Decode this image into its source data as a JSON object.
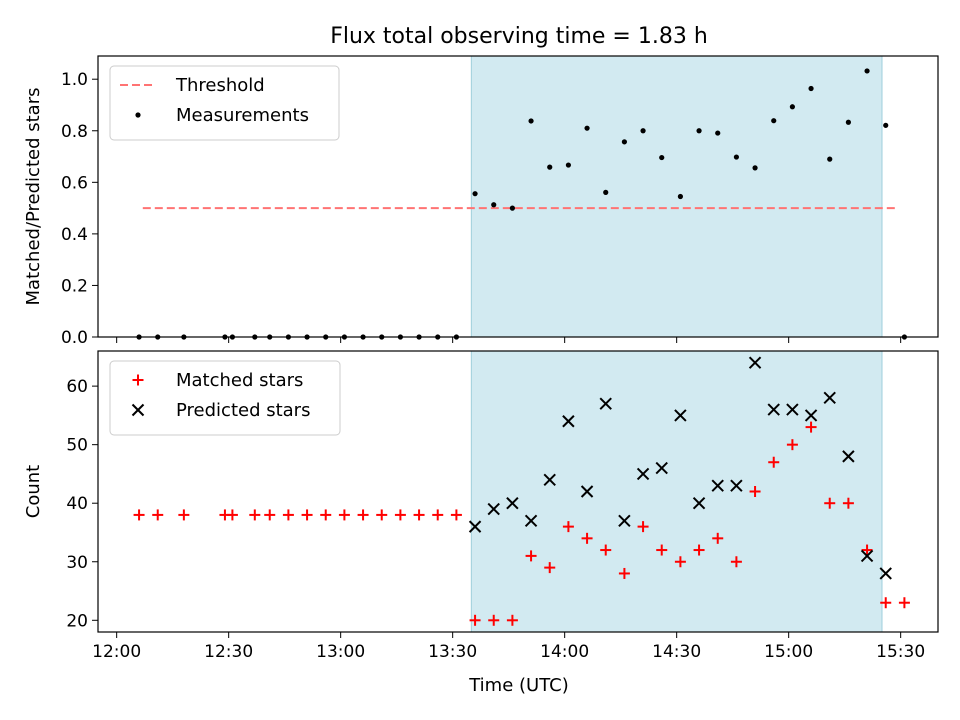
{
  "chart_data": {
    "title": "Flux total observing time = 1.83 h",
    "xlabel": "Time (UTC)",
    "xlim": [
      "11:55",
      "15:40"
    ],
    "x_ticks": [
      "12:00",
      "12:30",
      "13:00",
      "13:30",
      "14:00",
      "14:30",
      "15:00",
      "15:30"
    ],
    "shaded_interval": {
      "start": "13:35",
      "end": "15:25",
      "color": "#add8e6"
    },
    "panels": [
      {
        "type": "scatter",
        "ylabel": "Matched/Predicted stars",
        "ylim": [
          0,
          1.09
        ],
        "y_ticks": [
          "0.0",
          "0.2",
          "0.4",
          "0.6",
          "0.8",
          "1.0"
        ],
        "legend": {
          "position": "top-left",
          "entries": [
            {
              "name": "Threshold",
              "style": "dashed-line",
              "color": "#ff7373"
            },
            {
              "name": "Measurements",
              "style": "dot",
              "color": "#000000"
            }
          ]
        },
        "threshold": {
          "name": "Threshold",
          "value": 0.5,
          "x_start": "12:07",
          "x_end": "15:29",
          "color": "#ff7373"
        },
        "series": [
          {
            "name": "Measurements",
            "marker": "dot",
            "color": "#000000",
            "x": [
              "12:06",
              "12:11",
              "12:18",
              "12:29",
              "12:31",
              "12:37",
              "12:41",
              "12:46",
              "12:51",
              "12:56",
              "13:01",
              "13:06",
              "13:11",
              "13:16",
              "13:21",
              "13:26",
              "13:31",
              "13:36",
              "13:41",
              "13:46",
              "13:51",
              "13:56",
              "14:01",
              "14:06",
              "14:11",
              "14:16",
              "14:21",
              "14:26",
              "14:31",
              "14:36",
              "14:41",
              "14:46",
              "14:51",
              "14:56",
              "15:01",
              "15:06",
              "15:11",
              "15:16",
              "15:21",
              "15:26",
              "15:31"
            ],
            "y": [
              0,
              0,
              0,
              0,
              0,
              0,
              0,
              0,
              0,
              0,
              0,
              0,
              0,
              0,
              0,
              0,
              0,
              0.556,
              0.513,
              0.5,
              0.838,
              0.659,
              0.667,
              0.81,
              0.561,
              0.757,
              0.8,
              0.696,
              0.545,
              0.8,
              0.791,
              0.698,
              0.656,
              0.839,
              0.893,
              0.964,
              0.69,
              0.833,
              1.032,
              0.821,
              0
            ]
          }
        ]
      },
      {
        "type": "scatter",
        "ylabel": "Count",
        "ylim": [
          18,
          66
        ],
        "y_ticks": [
          "20",
          "30",
          "40",
          "50",
          "60"
        ],
        "legend": {
          "position": "top-left",
          "entries": [
            {
              "name": "Matched stars",
              "style": "plus",
              "color": "#ff0000"
            },
            {
              "name": "Predicted stars",
              "style": "x",
              "color": "#000000"
            }
          ]
        },
        "series": [
          {
            "name": "Matched stars",
            "marker": "plus",
            "color": "#ff0000",
            "x": [
              "12:06",
              "12:11",
              "12:18",
              "12:29",
              "12:31",
              "12:37",
              "12:41",
              "12:46",
              "12:51",
              "12:56",
              "13:01",
              "13:06",
              "13:11",
              "13:16",
              "13:21",
              "13:26",
              "13:31",
              "13:36",
              "13:41",
              "13:46",
              "13:51",
              "13:56",
              "14:01",
              "14:06",
              "14:11",
              "14:16",
              "14:21",
              "14:26",
              "14:31",
              "14:36",
              "14:41",
              "14:46",
              "14:51",
              "14:56",
              "15:01",
              "15:06",
              "15:11",
              "15:16",
              "15:21",
              "15:26",
              "15:31"
            ],
            "y": [
              38,
              38,
              38,
              38,
              38,
              38,
              38,
              38,
              38,
              38,
              38,
              38,
              38,
              38,
              38,
              38,
              38,
              20,
              20,
              20,
              31,
              29,
              36,
              34,
              32,
              28,
              36,
              32,
              30,
              32,
              34,
              30,
              42,
              47,
              50,
              53,
              40,
              40,
              32,
              23,
              23
            ]
          },
          {
            "name": "Predicted stars",
            "marker": "x",
            "color": "#000000",
            "x": [
              "13:36",
              "13:41",
              "13:46",
              "13:51",
              "13:56",
              "14:01",
              "14:06",
              "14:11",
              "14:16",
              "14:21",
              "14:26",
              "14:31",
              "14:36",
              "14:41",
              "14:46",
              "14:51",
              "14:56",
              "15:01",
              "15:06",
              "15:11",
              "15:16",
              "15:21",
              "15:26"
            ],
            "y": [
              36,
              39,
              40,
              37,
              44,
              54,
              42,
              57,
              37,
              45,
              46,
              55,
              40,
              43,
              43,
              64,
              56,
              56,
              55,
              58,
              48,
              31,
              28
            ]
          }
        ]
      }
    ]
  }
}
